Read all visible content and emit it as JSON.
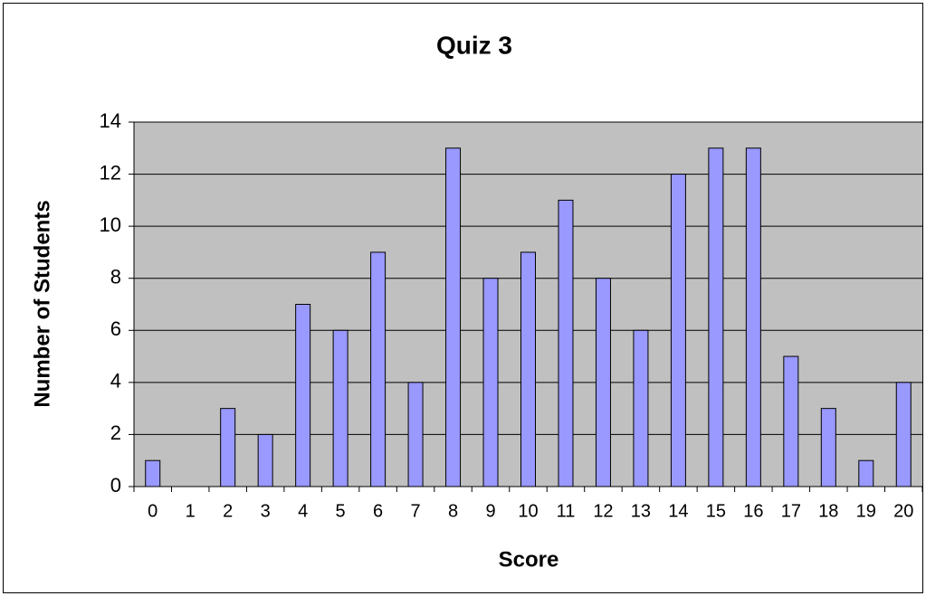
{
  "chart_data": {
    "type": "bar",
    "title": "Quiz 3",
    "x_label": "Score",
    "y_label": "Number of Students",
    "categories": [
      "0",
      "1",
      "2",
      "3",
      "4",
      "5",
      "6",
      "7",
      "8",
      "9",
      "10",
      "11",
      "12",
      "13",
      "14",
      "15",
      "16",
      "17",
      "18",
      "19",
      "20"
    ],
    "values": [
      1,
      0,
      3,
      2,
      7,
      6,
      9,
      4,
      13,
      8,
      9,
      11,
      8,
      6,
      12,
      13,
      13,
      5,
      3,
      1,
      4
    ],
    "color": "#9999ff",
    "ylim": [
      0,
      14
    ],
    "yticks": [
      0,
      2,
      4,
      6,
      8,
      10,
      12,
      14
    ],
    "grid": true
  }
}
